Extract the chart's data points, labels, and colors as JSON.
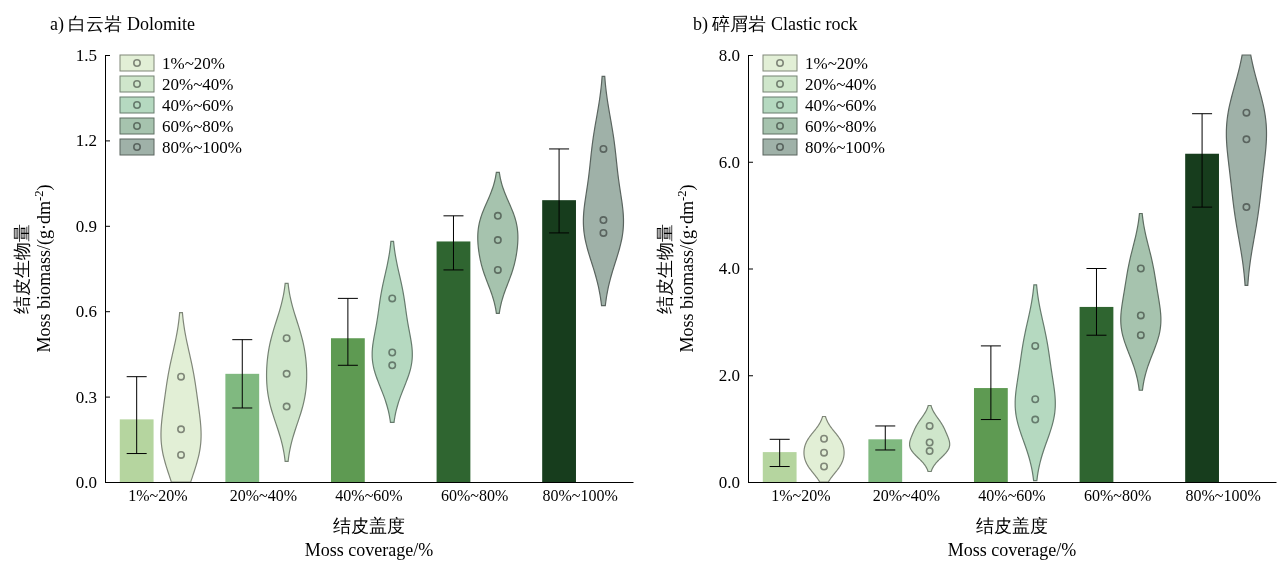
{
  "chart_data": [
    {
      "type": "bar",
      "title": "a) 白云岩 Dolomite",
      "xlabel": "结皮盖度\nMoss coverage/%",
      "ylabel": "结皮生物量\nMoss biomass/(g·dm$^{-2}$)",
      "categories": [
        "1%~20%",
        "20%~40%",
        "40%~60%",
        "60%~80%",
        "80%~100%"
      ],
      "ylim": [
        0,
        1.5
      ],
      "yticks": [
        {
          "value": 0,
          "label": "0.0"
        },
        0.3,
        0.6,
        0.9,
        1.2,
        1.5
      ],
      "legend": "top left",
      "series": [
        {
          "colors": [
            "#b5d59f",
            "#80b980",
            "#5e9a52",
            "#2f6530",
            "#173d1d"
          ],
          "values": [
            0.22,
            0.38,
            0.505,
            0.845,
            0.99
          ],
          "errors": [
            [
              0.1,
              0.37
            ],
            [
              0.26,
              0.5
            ],
            [
              0.41,
              0.645
            ],
            [
              0.745,
              0.935
            ],
            [
              0.875,
              1.17
            ]
          ]
        },
        {
          "type": "scatter",
          "name": "1%~20%",
          "color": "#e2efd6",
          "x": [
            "1%~20%",
            "1%~20%",
            "1%~20%"
          ],
          "values": [
            0.095,
            0.185,
            0.37
          ]
        },
        {
          "type": "scatter",
          "name": "20%~40%",
          "color": "#cfe6cb",
          "x": [
            "20%~40%",
            "20%~40%",
            "20%~40%"
          ],
          "values": [
            0.265,
            0.38,
            0.505
          ]
        },
        {
          "type": "scatter",
          "name": "40%~60%",
          "color": "#b5d9c0",
          "x": [
            "40%~60%",
            "40%~60%",
            "40%~60%"
          ],
          "values": [
            0.41,
            0.455,
            0.645
          ]
        },
        {
          "type": "scatter",
          "name": "60%~80%",
          "color": "#a6c3ae",
          "x": [
            "60%~80%",
            "60%~80%",
            "60%~80%"
          ],
          "values": [
            0.745,
            0.85,
            0.935
          ]
        },
        {
          "type": "scatter",
          "name": "80%~100%",
          "color": "#9fb1a8",
          "x": [
            "80%~100%",
            "80%~100%",
            "80%~100%"
          ],
          "values": [
            0.875,
            0.92,
            1.17
          ]
        }
      ]
    },
    {
      "type": "bar",
      "title": "b) 碎屑岩 Clastic rock",
      "xlabel": "结皮盖度\nMoss coverage/%",
      "ylabel": "结皮生物量\nMoss biomass/(g·dm$^{-2}$)",
      "categories": [
        "1%~20%",
        "20%~40%",
        "40%~60%",
        "60%~80%",
        "80%~100%"
      ],
      "ylim": [
        0,
        8
      ],
      "yticks": [
        {
          "value": 0,
          "label": "0.0"
        },
        {
          "value": 2,
          "label": "2.0"
        },
        {
          "value": 4,
          "label": "4.0"
        },
        {
          "value": 6,
          "label": "6.0"
        },
        {
          "value": 8,
          "label": "8.0"
        }
      ],
      "legend": "top left",
      "series": [
        {
          "colors": [
            "#b5d59f",
            "#80b980",
            "#5e9a52",
            "#2f6530",
            "#173d1d"
          ],
          "values": [
            0.56,
            0.8,
            1.76,
            3.28,
            6.15
          ],
          "errors": [
            [
              0.29,
              0.8
            ],
            [
              0.6,
              1.05
            ],
            [
              1.17,
              2.55
            ],
            [
              2.75,
              4.0
            ],
            [
              5.15,
              6.9
            ]
          ]
        },
        {
          "type": "scatter",
          "name": "1%~20%",
          "color": "#e2efd6",
          "x": [
            "1%~20%",
            "1%~20%",
            "1%~20%"
          ],
          "values": [
            0.29,
            0.55,
            0.81
          ]
        },
        {
          "type": "scatter",
          "name": "20%~40%",
          "color": "#cfe6cb",
          "x": [
            "20%~40%",
            "20%~40%",
            "20%~40%"
          ],
          "values": [
            0.58,
            0.74,
            1.05
          ]
        },
        {
          "type": "scatter",
          "name": "40%~60%",
          "color": "#b5d9c0",
          "x": [
            "40%~60%",
            "40%~60%",
            "40%~60%"
          ],
          "values": [
            1.17,
            1.55,
            2.55
          ]
        },
        {
          "type": "scatter",
          "name": "60%~80%",
          "color": "#a6c3ae",
          "x": [
            "60%~80%",
            "60%~80%",
            "60%~80%"
          ],
          "values": [
            2.75,
            3.12,
            4.0
          ]
        },
        {
          "type": "scatter",
          "name": "80%~100%",
          "color": "#9fb1a8",
          "x": [
            "80%~100%",
            "80%~100%",
            "80%~100%"
          ],
          "values": [
            5.15,
            6.42,
            6.92
          ]
        }
      ]
    }
  ]
}
